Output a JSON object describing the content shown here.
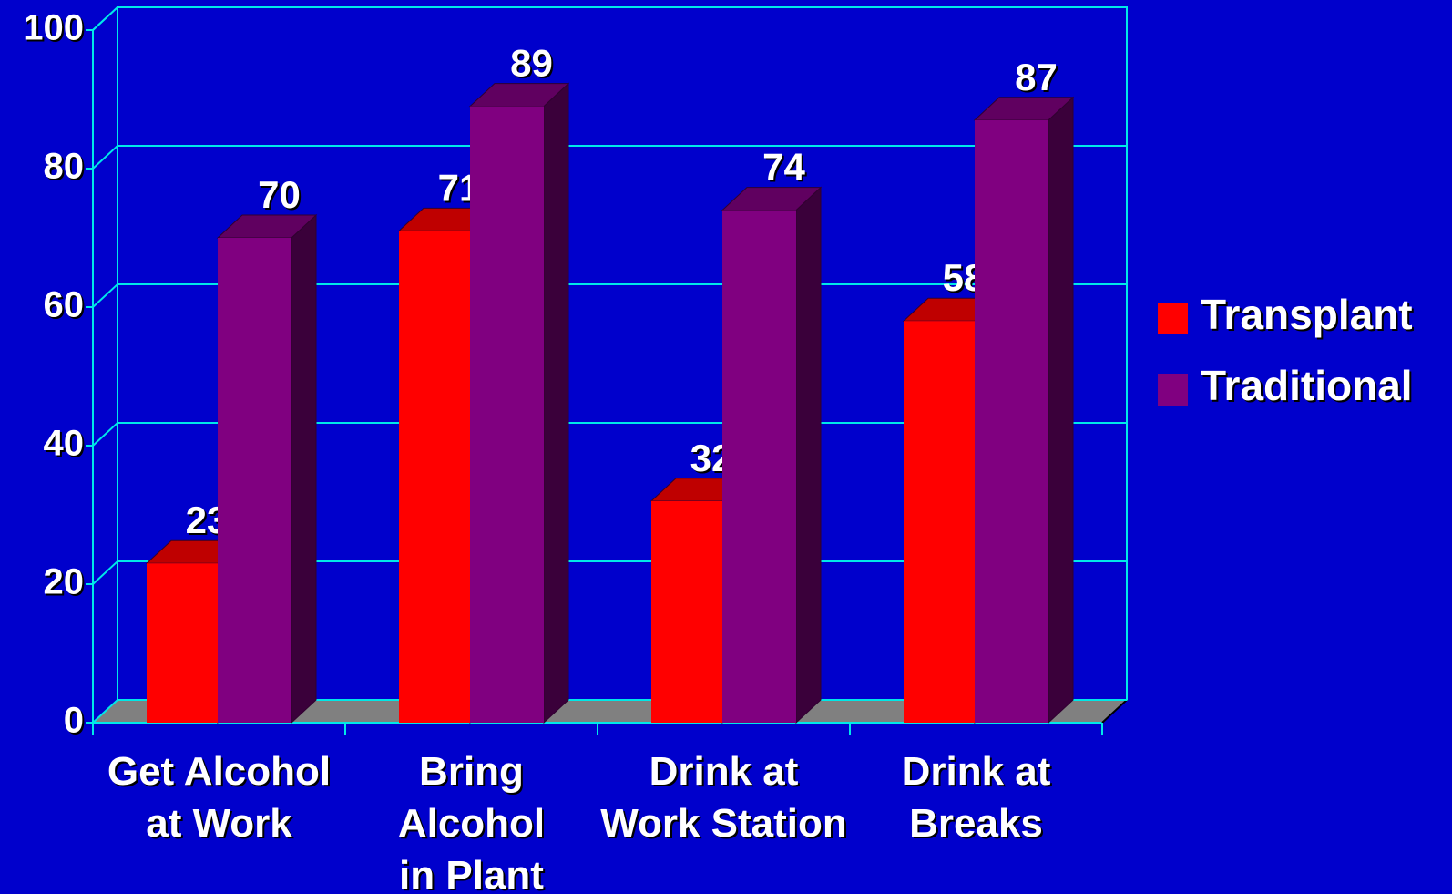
{
  "chart_data": {
    "type": "bar3d",
    "categories": [
      [
        "Get Alcohol",
        "at Work"
      ],
      [
        "Bring",
        "Alcohol",
        "in Plant"
      ],
      [
        "Drink at",
        "Work Station"
      ],
      [
        "Drink at",
        "Breaks"
      ]
    ],
    "series": [
      {
        "name": "Transplant",
        "color": "#ff0000",
        "values": [
          23,
          71,
          32,
          58
        ]
      },
      {
        "name": "Traditional",
        "color": "#800080",
        "values": [
          70,
          89,
          74,
          87
        ]
      }
    ],
    "ylim": [
      0,
      100
    ],
    "yticks": [
      0,
      20,
      40,
      60,
      80,
      100
    ],
    "grid": true,
    "legend": "right"
  }
}
